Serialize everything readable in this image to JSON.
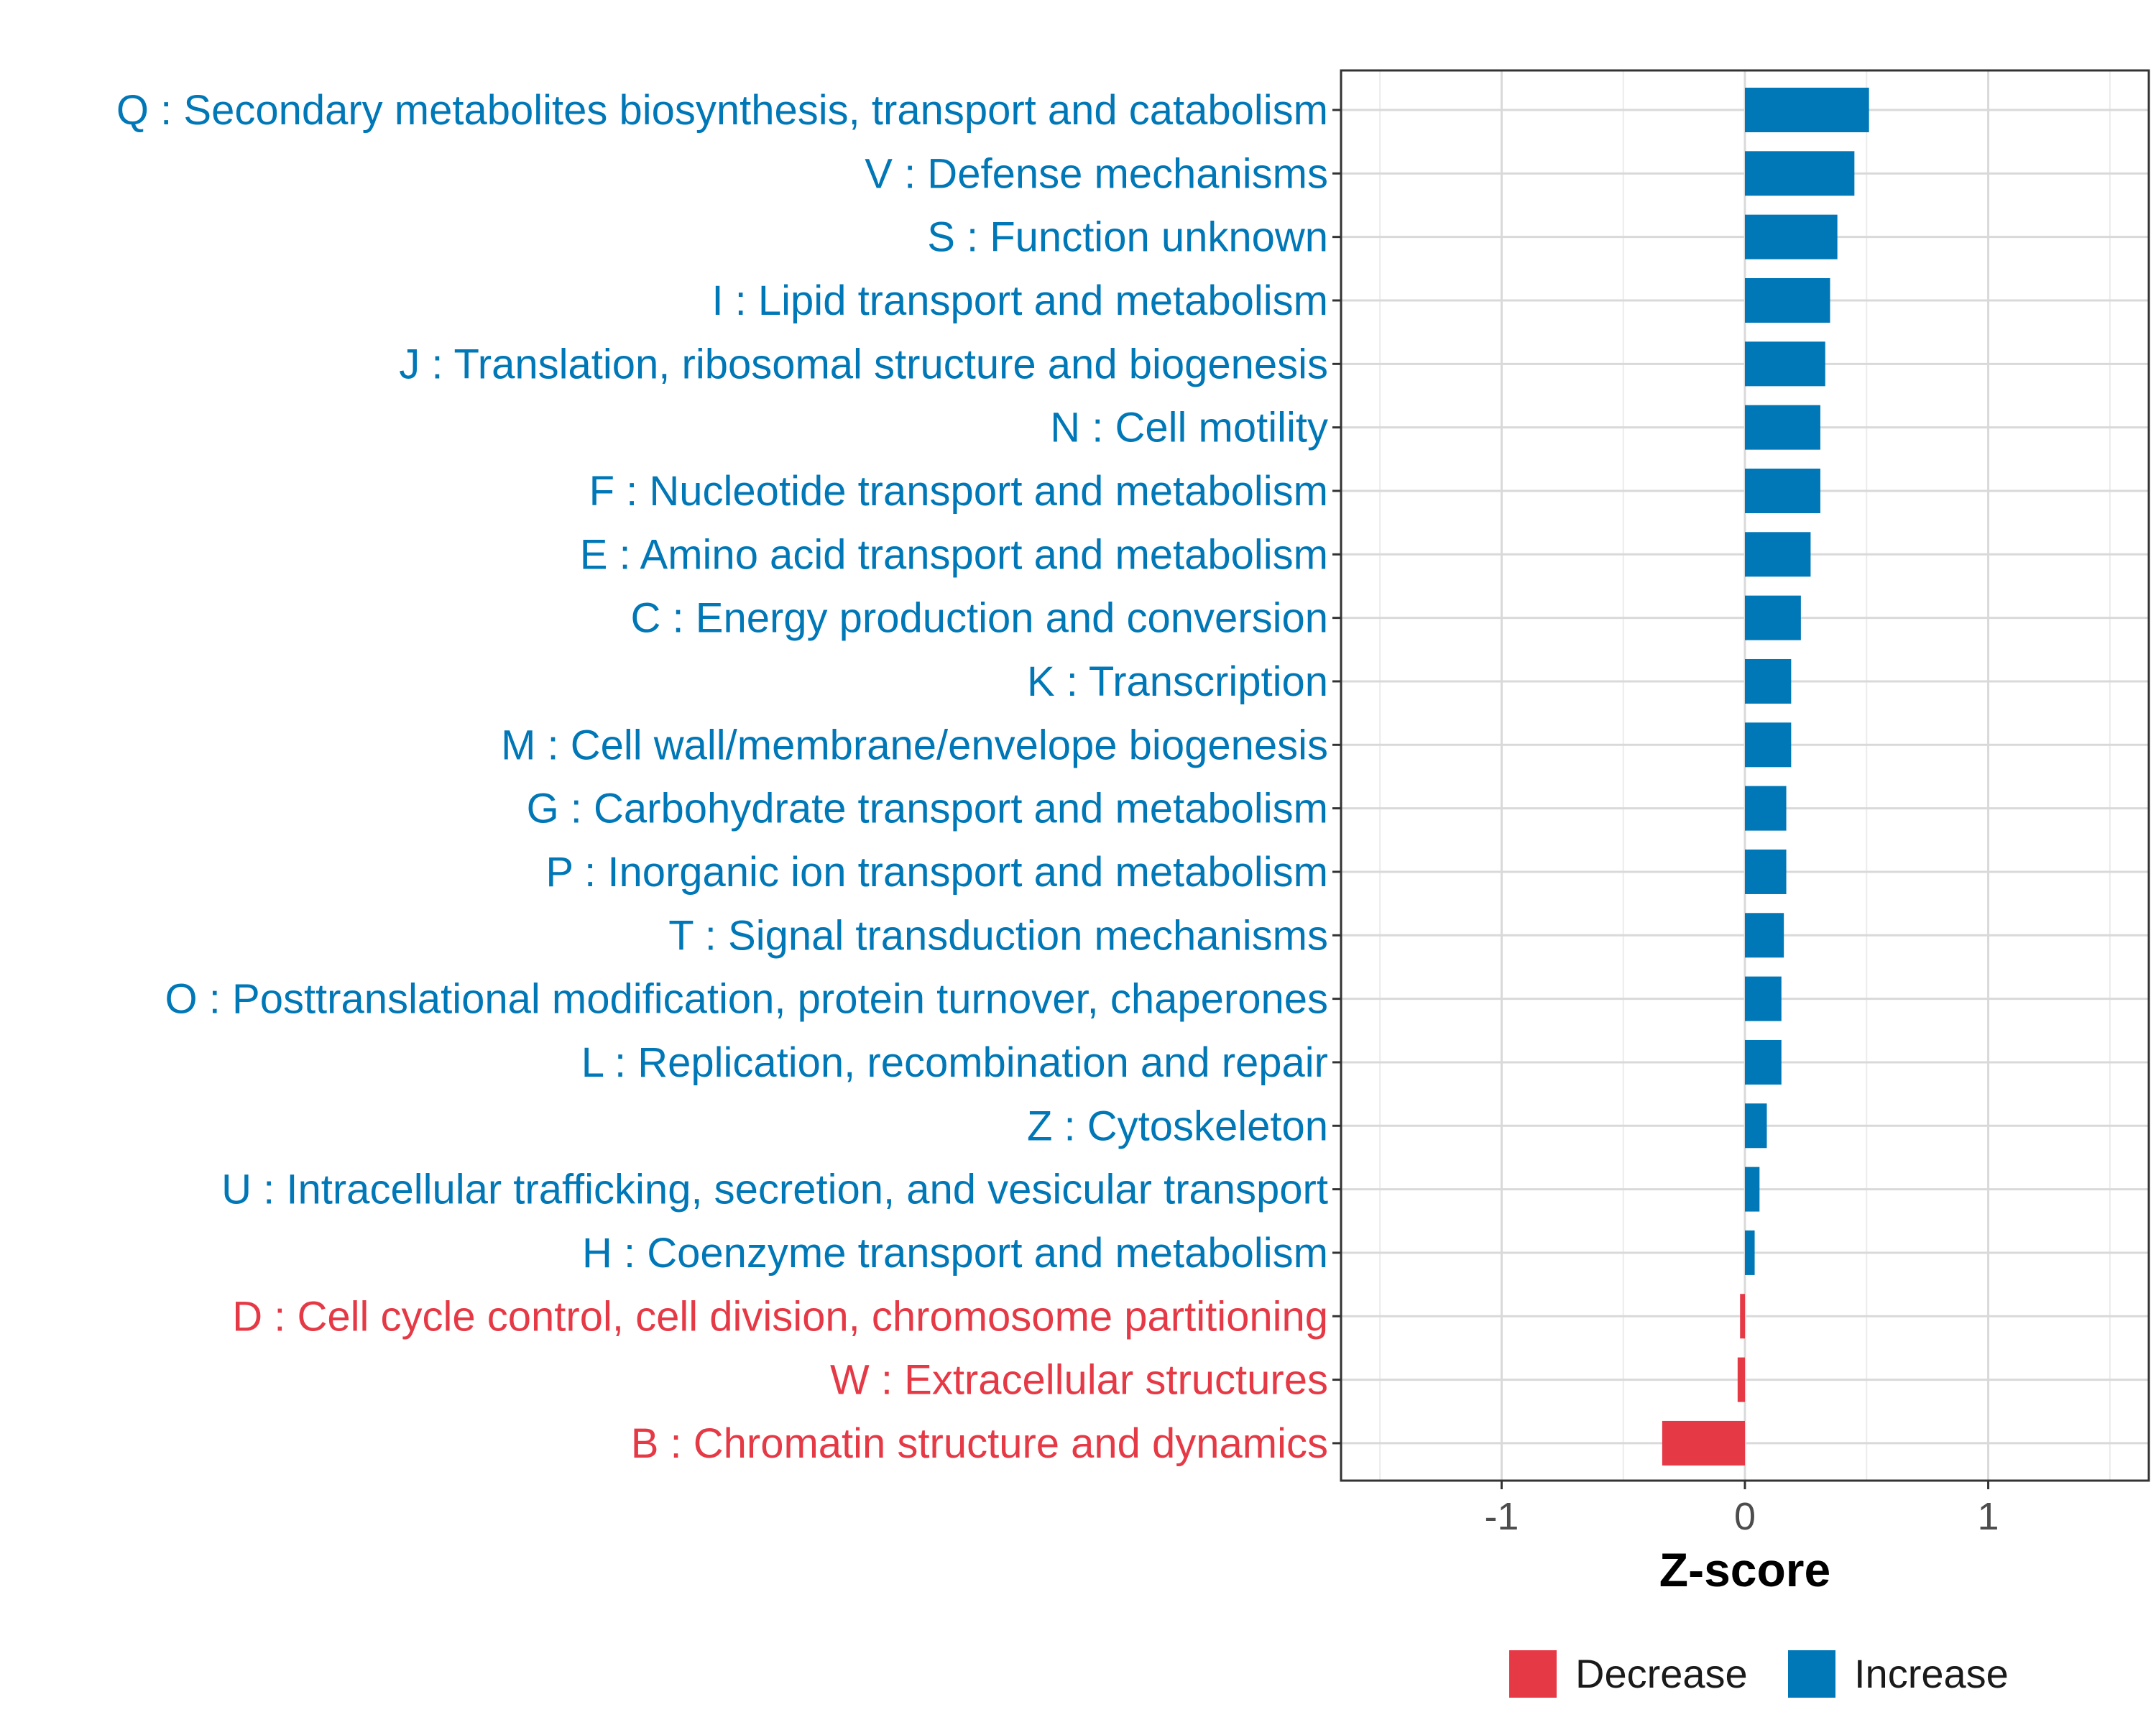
{
  "chart_data": {
    "type": "bar",
    "orientation": "horizontal",
    "title": "",
    "xlabel": "Z-score",
    "ylabel": "",
    "xlim": [
      -1.66,
      1.66
    ],
    "xticks": [
      -1,
      0,
      1
    ],
    "xtick_labels": [
      "-1",
      "0",
      "1"
    ],
    "grid": true,
    "legend_position": "bottom",
    "colors": {
      "Decrease": "#E63946",
      "Increase": "#0077B6"
    },
    "legend": [
      {
        "label": "Decrease",
        "color": "#E63946"
      },
      {
        "label": "Increase",
        "color": "#0077B6"
      }
    ],
    "categories": [
      "Q : Secondary metabolites biosynthesis, transport and catabolism",
      "V : Defense mechanisms",
      "S : Function unknown",
      "I : Lipid transport and metabolism",
      "J : Translation, ribosomal structure and biogenesis",
      "N : Cell motility",
      "F : Nucleotide transport and metabolism",
      "E : Amino acid transport and metabolism",
      "C : Energy production and conversion",
      "K : Transcription",
      "M : Cell wall/membrane/envelope biogenesis",
      "G : Carbohydrate transport and metabolism",
      "P : Inorganic ion transport and metabolism",
      "T : Signal transduction mechanisms",
      "O : Posttranslational modification, protein turnover, chaperones",
      "L : Replication, recombination and repair",
      "Z : Cytoskeleton",
      "U : Intracellular trafficking, secretion, and vesicular transport",
      "H : Coenzyme transport and metabolism",
      "D : Cell cycle control, cell division, chromosome partitioning",
      "W : Extracellular structures",
      "B : Chromatin structure and dynamics"
    ],
    "values": [
      0.51,
      0.45,
      0.38,
      0.35,
      0.33,
      0.31,
      0.31,
      0.27,
      0.23,
      0.19,
      0.19,
      0.17,
      0.17,
      0.16,
      0.15,
      0.15,
      0.09,
      0.06,
      0.04,
      -0.02,
      -0.03,
      -0.34
    ],
    "groups": [
      "Increase",
      "Increase",
      "Increase",
      "Increase",
      "Increase",
      "Increase",
      "Increase",
      "Increase",
      "Increase",
      "Increase",
      "Increase",
      "Increase",
      "Increase",
      "Increase",
      "Increase",
      "Increase",
      "Increase",
      "Increase",
      "Increase",
      "Decrease",
      "Decrease",
      "Decrease"
    ]
  }
}
